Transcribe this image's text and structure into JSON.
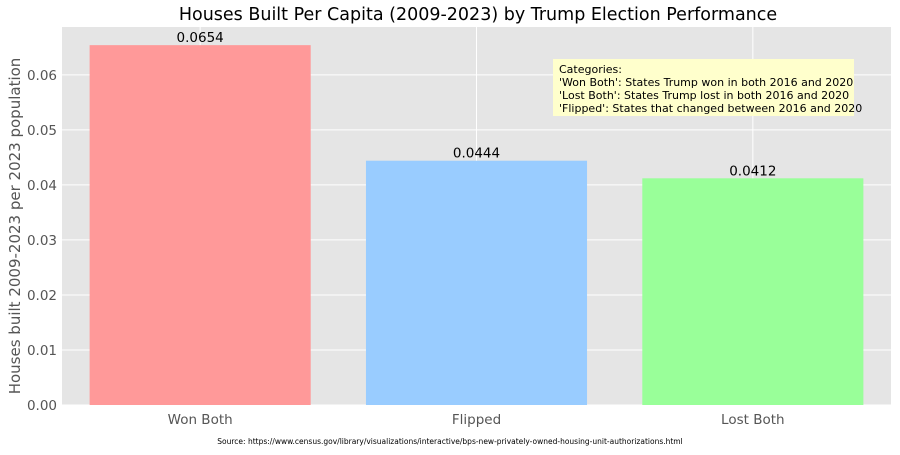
{
  "chart_data": {
    "type": "bar",
    "title": "Houses Built Per Capita (2009-2023) by Trump Election Performance",
    "xlabel": "",
    "ylabel": "Houses built 2009-2023 per 2023 population",
    "categories": [
      "Won Both",
      "Flipped",
      "Lost Both"
    ],
    "values": [
      0.0654,
      0.0444,
      0.0412
    ],
    "value_labels": [
      "0.0654",
      "0.0444",
      "0.0412"
    ],
    "bar_colors": [
      "#ff9999",
      "#99ccff",
      "#99ff99"
    ],
    "ylim": [
      0,
      0.0687
    ],
    "yticks": [
      0.0,
      0.01,
      0.02,
      0.03,
      0.04,
      0.05,
      0.06
    ],
    "ytick_labels": [
      "0.00",
      "0.01",
      "0.02",
      "0.03",
      "0.04",
      "0.05",
      "0.06"
    ],
    "grid": true,
    "annotation": {
      "lines": [
        "Categories:",
        "'Won Both': States Trump won in both 2016 and 2020",
        "'Lost Both': States Trump lost in both 2016 and 2020",
        "'Flipped': States that changed between 2016 and 2020"
      ],
      "background": "#ffffcc"
    }
  },
  "source_text": "Source: https://www.census.gov/library/visualizations/interactive/bps-new-privately-owned-housing-unit-authorizations.html",
  "colors": {
    "plot_background": "#e5e5e5",
    "grid": "#ffffff",
    "tick_text": "#555555"
  }
}
